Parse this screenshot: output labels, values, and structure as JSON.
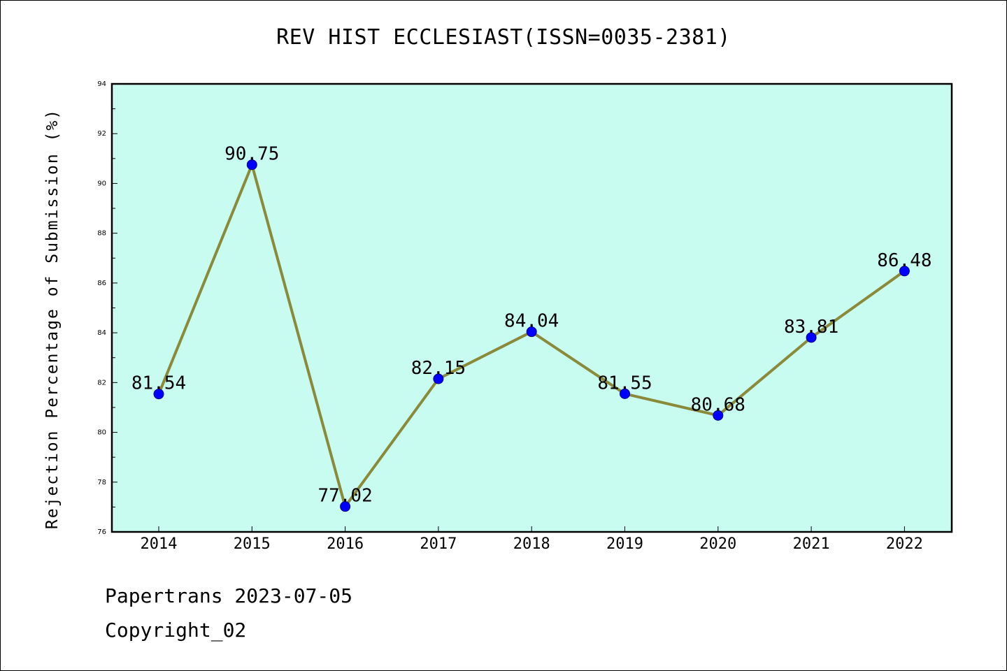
{
  "chart_data": {
    "type": "line",
    "title": "REV HIST ECCLESIAST(ISSN=0035-2381)",
    "xlabel": "",
    "ylabel": "Rejection Percentage of Submission (%)",
    "categories": [
      "2014",
      "2015",
      "2016",
      "2017",
      "2018",
      "2019",
      "2020",
      "2021",
      "2022"
    ],
    "series": [
      {
        "values": [
          81.54,
          90.75,
          77.02,
          82.15,
          84.04,
          81.55,
          80.68,
          83.81,
          86.48
        ],
        "labels": [
          "81.54",
          "90.75",
          "77.02",
          "82.15",
          "84.04",
          "81.55",
          "80.68",
          "83.81",
          "86.48"
        ]
      }
    ],
    "ylim": [
      76,
      94
    ],
    "yticks": [
      "76",
      "78",
      "80",
      "82",
      "84",
      "86",
      "88",
      "90",
      "92",
      "94"
    ],
    "grid": false,
    "colors": {
      "plot_background": "#c8fcf0",
      "line": "#8b8a3b",
      "marker": "#0000ff",
      "marker_edge": "#00008b"
    }
  },
  "footer": {
    "line1": "Papertrans 2023-07-05",
    "line2": "Copyright_02"
  }
}
